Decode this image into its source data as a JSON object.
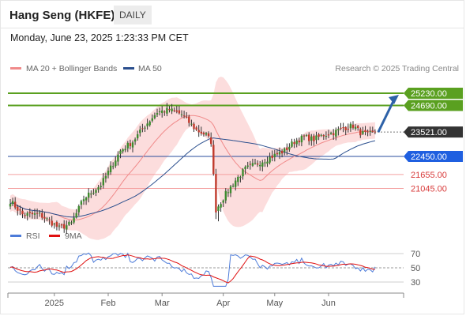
{
  "header": {
    "title": "Hang Seng (HKFE)",
    "timeframe": "DAILY"
  },
  "datetime": "Monday, June 23, 2025 1:23:33 PM CET",
  "legend": {
    "bb_label": "MA 20 + Bollinger Bands",
    "ma50_label": "MA 50",
    "credit": "Research © 2025 Trading Central",
    "rsi_label": "RSI",
    "rsi_ma_label": "9MA"
  },
  "colors": {
    "bb_band": "#fbd5d5",
    "bb_line": "#f08a8a",
    "ma50": "#2b4f8e",
    "candle_up": "#3d8b2e",
    "candle_down": "#c0392b",
    "resistance": "#5aa020",
    "support_blue": "#2a4d9c",
    "support_red": "#f4a0a0",
    "pivot": "#333333",
    "arrow": "#2e62a8",
    "rsi": "#4c7bd9",
    "rsi_ma": "#e01010"
  },
  "chart_data": {
    "type": "candlestick",
    "y_range": [
      19500,
      26200
    ],
    "x_labels": [
      "2025",
      "Feb",
      "Mar",
      "Apr",
      "May",
      "Jun"
    ],
    "levels": [
      {
        "value": 25230,
        "label": "25230.00",
        "kind": "resistance"
      },
      {
        "value": 24690,
        "label": "24690.00",
        "kind": "resistance"
      },
      {
        "value": 23521,
        "label": "23521.00",
        "kind": "pivot"
      },
      {
        "value": 22450,
        "label": "22450.00",
        "kind": "support-major"
      },
      {
        "value": 21655,
        "label": "21655.00",
        "kind": "support"
      },
      {
        "value": 21045,
        "label": "21045.00",
        "kind": "support"
      }
    ],
    "rsi_levels": [
      {
        "value": 70,
        "label": "70"
      },
      {
        "value": 50,
        "label": "50"
      },
      {
        "value": 30,
        "label": "30"
      }
    ],
    "rsi_range": [
      20,
      80
    ],
    "anchors": [
      [
        0,
        20500
      ],
      [
        5,
        19900
      ],
      [
        12,
        19900
      ],
      [
        20,
        19300
      ],
      [
        25,
        19500
      ],
      [
        30,
        20600
      ],
      [
        37,
        21200
      ],
      [
        45,
        22700
      ],
      [
        50,
        23100
      ],
      [
        55,
        23800
      ],
      [
        60,
        24400
      ],
      [
        65,
        24500
      ],
      [
        70,
        24300
      ],
      [
        76,
        23600
      ],
      [
        80,
        23400
      ],
      [
        82,
        23100
      ],
      [
        84,
        20100
      ],
      [
        88,
        20800
      ],
      [
        92,
        21400
      ],
      [
        96,
        21900
      ],
      [
        100,
        22100
      ],
      [
        104,
        22300
      ],
      [
        108,
        22500
      ],
      [
        112,
        22700
      ],
      [
        116,
        23100
      ],
      [
        120,
        23300
      ],
      [
        124,
        23200
      ],
      [
        128,
        23400
      ],
      [
        132,
        23500
      ],
      [
        136,
        23700
      ],
      [
        140,
        23800
      ],
      [
        143,
        23500
      ],
      [
        146,
        23400
      ],
      [
        149,
        23521
      ]
    ]
  }
}
